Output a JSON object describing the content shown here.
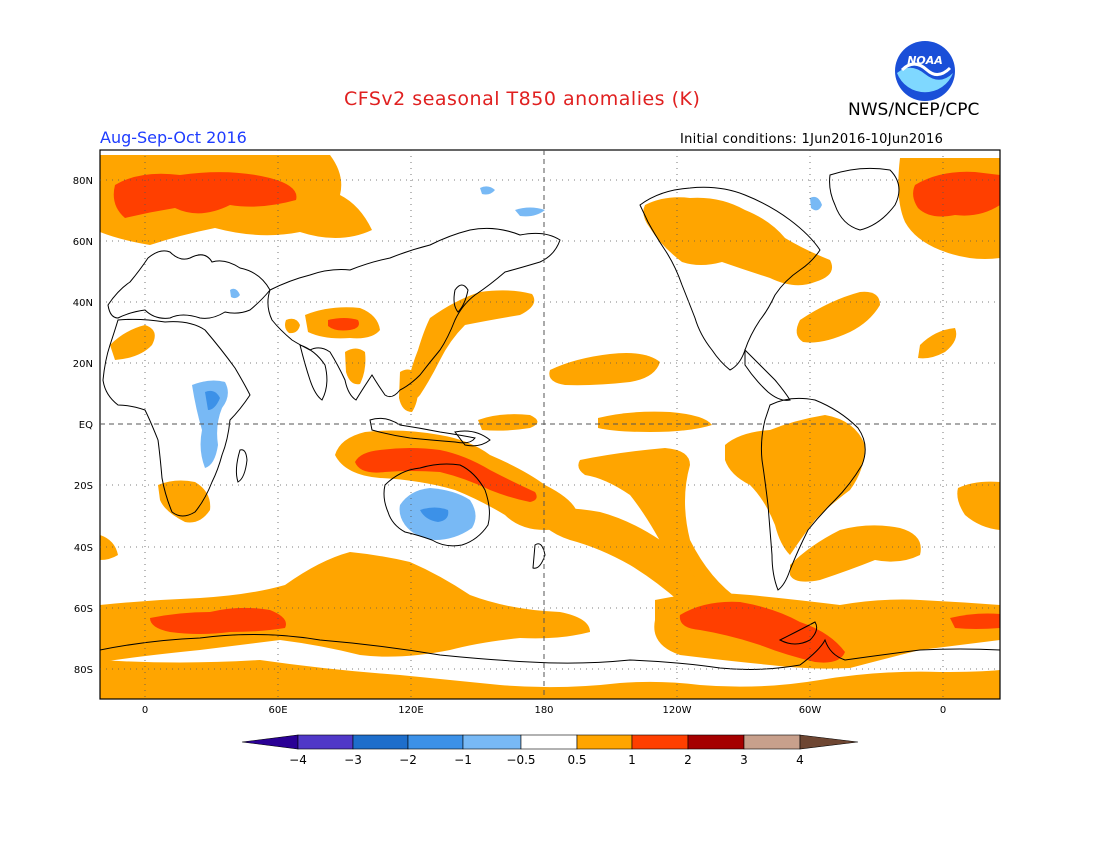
{
  "header": {
    "title": "CFSv2 seasonal T850 anomalies (K)",
    "organization": "NWS/NCEP/CPC",
    "season": "Aug-Sep-Oct 2016",
    "initial_conditions": "Initial conditions: 1Jun2016-10Jun2016",
    "logo_text": "NOAA"
  },
  "map": {
    "longitude_labels": [
      "0",
      "60E",
      "120E",
      "180",
      "120W",
      "60W",
      "0"
    ],
    "latitude_labels": [
      "80N",
      "60N",
      "40N",
      "20N",
      "EQ",
      "20S",
      "40S",
      "60S",
      "80S"
    ],
    "colors": {
      "plus_0_5_to_1": "#ffa500",
      "plus_1_to_2": "#ff3f00",
      "minus_0_5_to_1": "#78b9f5",
      "minus_1_to_2": "#3c91e8",
      "coast": "#000000"
    }
  },
  "colorbar": {
    "labels": [
      "−4",
      "−3",
      "−2",
      "−1",
      "−0.5",
      "0.5",
      "1",
      "2",
      "3",
      "4"
    ],
    "colors": [
      "#2a0095",
      "#5038c8",
      "#1e6ecb",
      "#3c91e8",
      "#78b9f5",
      "#ffffff",
      "#ffa500",
      "#ff3f00",
      "#a50000",
      "#c8a08c",
      "#6e4632"
    ]
  }
}
